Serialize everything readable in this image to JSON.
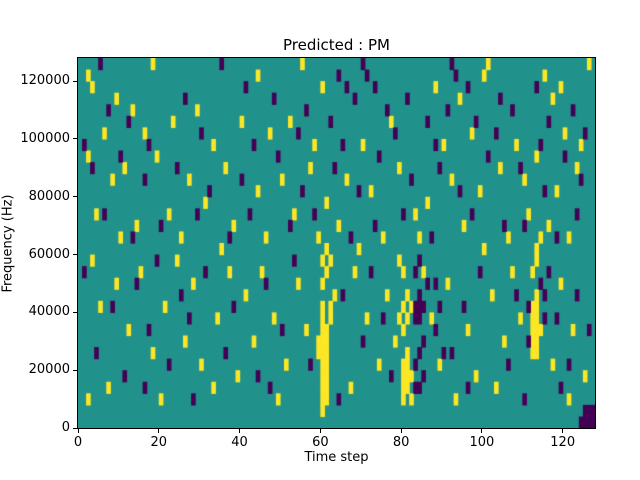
{
  "chart_data": {
    "type": "heatmap",
    "title": "Predicted : PM",
    "xlabel": "Time step",
    "ylabel": "Frequency (Hz)",
    "xlim": [
      0,
      128
    ],
    "ylim": [
      0,
      128000
    ],
    "x_ticks": [
      0,
      20,
      40,
      60,
      80,
      100,
      120
    ],
    "y_ticks": [
      0,
      20000,
      40000,
      60000,
      80000,
      100000,
      120000
    ],
    "grid": {
      "cols": 128,
      "rows": 32,
      "cell_height_hz": 4000
    },
    "colors": {
      "background": "#21918c",
      "high": "#fde725",
      "low": "#440154"
    },
    "legend": "none",
    "cells": {
      "yellow": [
        [
          2,
          30
        ],
        [
          18,
          31
        ],
        [
          44,
          30
        ],
        [
          55,
          31
        ],
        [
          100,
          30
        ],
        [
          101,
          31
        ],
        [
          115,
          30
        ],
        [
          126,
          31
        ],
        [
          9,
          28
        ],
        [
          3,
          29
        ],
        [
          13,
          27
        ],
        [
          29,
          27
        ],
        [
          60,
          29
        ],
        [
          88,
          29
        ],
        [
          94,
          28
        ],
        [
          117,
          28
        ],
        [
          119,
          29
        ],
        [
          52,
          26
        ],
        [
          77,
          26
        ],
        [
          40,
          26
        ],
        [
          23,
          26
        ],
        [
          6,
          25
        ],
        [
          16,
          25
        ],
        [
          47,
          25
        ],
        [
          97,
          25
        ],
        [
          120,
          25
        ],
        [
          33,
          24
        ],
        [
          58,
          24
        ],
        [
          70,
          24
        ],
        [
          90,
          24
        ],
        [
          108,
          24
        ],
        [
          124,
          24
        ],
        [
          2,
          23
        ],
        [
          11,
          22
        ],
        [
          19,
          23
        ],
        [
          27,
          21
        ],
        [
          36,
          22
        ],
        [
          31,
          19
        ],
        [
          44,
          20
        ],
        [
          50,
          21
        ],
        [
          57,
          22
        ],
        [
          61,
          19
        ],
        [
          66,
          21
        ],
        [
          72,
          20
        ],
        [
          79,
          22
        ],
        [
          86,
          19
        ],
        [
          92,
          21
        ],
        [
          99,
          20
        ],
        [
          104,
          22
        ],
        [
          110,
          21
        ],
        [
          113,
          23
        ],
        [
          118,
          20
        ],
        [
          123,
          22
        ],
        [
          8,
          21
        ],
        [
          4,
          18
        ],
        [
          14,
          17
        ],
        [
          22,
          18
        ],
        [
          38,
          17
        ],
        [
          46,
          16
        ],
        [
          53,
          18
        ],
        [
          59,
          16
        ],
        [
          64,
          17
        ],
        [
          75,
          16
        ],
        [
          83,
          18
        ],
        [
          95,
          17
        ],
        [
          106,
          16
        ],
        [
          111,
          18
        ],
        [
          116,
          17
        ],
        [
          121,
          16
        ],
        [
          25,
          16
        ],
        [
          10,
          16
        ],
        [
          35,
          15
        ],
        [
          69,
          15
        ],
        [
          84,
          16
        ],
        [
          100,
          15
        ],
        [
          60,
          1
        ],
        [
          60,
          2
        ],
        [
          60,
          3
        ],
        [
          60,
          4
        ],
        [
          60,
          5
        ],
        [
          60,
          6
        ],
        [
          60,
          7
        ],
        [
          60,
          8
        ],
        [
          60,
          9
        ],
        [
          60,
          10
        ],
        [
          61,
          2
        ],
        [
          61,
          3
        ],
        [
          61,
          4
        ],
        [
          61,
          5
        ],
        [
          61,
          6
        ],
        [
          61,
          7
        ],
        [
          61,
          8
        ],
        [
          59,
          6
        ],
        [
          59,
          7
        ],
        [
          62,
          9
        ],
        [
          62,
          10
        ],
        [
          60,
          12
        ],
        [
          61,
          13
        ],
        [
          60,
          14
        ],
        [
          62,
          14
        ],
        [
          61,
          15
        ],
        [
          80,
          2
        ],
        [
          80,
          3
        ],
        [
          80,
          4
        ],
        [
          80,
          5
        ],
        [
          81,
          3
        ],
        [
          81,
          4
        ],
        [
          81,
          5
        ],
        [
          81,
          6
        ],
        [
          80,
          8
        ],
        [
          81,
          9
        ],
        [
          80,
          10
        ],
        [
          82,
          10
        ],
        [
          81,
          11
        ],
        [
          80,
          13
        ],
        [
          82,
          4
        ],
        [
          82,
          2
        ],
        [
          79,
          9
        ],
        [
          79,
          14
        ],
        [
          112,
          6
        ],
        [
          112,
          7
        ],
        [
          112,
          8
        ],
        [
          112,
          9
        ],
        [
          113,
          6
        ],
        [
          113,
          7
        ],
        [
          113,
          8
        ],
        [
          113,
          9
        ],
        [
          113,
          10
        ],
        [
          114,
          8
        ],
        [
          112,
          10
        ],
        [
          113,
          11
        ],
        [
          112,
          13
        ],
        [
          113,
          14
        ],
        [
          114,
          16
        ],
        [
          113,
          15
        ],
        [
          3,
          14
        ],
        [
          5,
          10
        ],
        [
          9,
          12
        ],
        [
          12,
          8
        ],
        [
          15,
          13
        ],
        [
          18,
          6
        ],
        [
          21,
          10
        ],
        [
          24,
          14
        ],
        [
          26,
          7
        ],
        [
          28,
          12
        ],
        [
          30,
          5
        ],
        [
          34,
          9
        ],
        [
          37,
          13
        ],
        [
          39,
          4
        ],
        [
          41,
          11
        ],
        [
          43,
          7
        ],
        [
          45,
          13
        ],
        [
          48,
          9
        ],
        [
          51,
          5
        ],
        [
          54,
          12
        ],
        [
          56,
          8
        ],
        [
          63,
          11
        ],
        [
          68,
          13
        ],
        [
          71,
          9
        ],
        [
          74,
          5
        ],
        [
          76,
          11
        ],
        [
          78,
          7
        ],
        [
          85,
          13
        ],
        [
          87,
          9
        ],
        [
          89,
          5
        ],
        [
          91,
          12
        ],
        [
          96,
          8
        ],
        [
          98,
          4
        ],
        [
          102,
          11
        ],
        [
          105,
          7
        ],
        [
          107,
          13
        ],
        [
          109,
          9
        ],
        [
          117,
          5
        ],
        [
          119,
          12
        ],
        [
          122,
          8
        ],
        [
          125,
          4
        ],
        [
          2,
          2
        ],
        [
          7,
          3
        ],
        [
          20,
          2
        ],
        [
          33,
          3
        ],
        [
          49,
          2
        ],
        [
          67,
          3
        ],
        [
          93,
          2
        ],
        [
          103,
          3
        ],
        [
          121,
          2
        ]
      ],
      "purple": [
        [
          5,
          31
        ],
        [
          35,
          31
        ],
        [
          64,
          30
        ],
        [
          70,
          31
        ],
        [
          71,
          30
        ],
        [
          92,
          31
        ],
        [
          93,
          30
        ],
        [
          41,
          29
        ],
        [
          48,
          28
        ],
        [
          66,
          29
        ],
        [
          68,
          28
        ],
        [
          73,
          29
        ],
        [
          81,
          28
        ],
        [
          96,
          29
        ],
        [
          104,
          28
        ],
        [
          113,
          29
        ],
        [
          7,
          27
        ],
        [
          12,
          26
        ],
        [
          26,
          28
        ],
        [
          56,
          27
        ],
        [
          62,
          26
        ],
        [
          76,
          27
        ],
        [
          86,
          26
        ],
        [
          91,
          27
        ],
        [
          98,
          26
        ],
        [
          107,
          27
        ],
        [
          116,
          26
        ],
        [
          122,
          27
        ],
        [
          1,
          24
        ],
        [
          17,
          24
        ],
        [
          30,
          25
        ],
        [
          43,
          24
        ],
        [
          54,
          25
        ],
        [
          65,
          24
        ],
        [
          78,
          25
        ],
        [
          88,
          24
        ],
        [
          103,
          25
        ],
        [
          114,
          24
        ],
        [
          125,
          25
        ],
        [
          3,
          22
        ],
        [
          10,
          23
        ],
        [
          16,
          21
        ],
        [
          24,
          22
        ],
        [
          32,
          20
        ],
        [
          40,
          21
        ],
        [
          49,
          23
        ],
        [
          55,
          20
        ],
        [
          63,
          22
        ],
        [
          69,
          20
        ],
        [
          74,
          23
        ],
        [
          82,
          21
        ],
        [
          89,
          22
        ],
        [
          94,
          20
        ],
        [
          101,
          23
        ],
        [
          109,
          22
        ],
        [
          115,
          20
        ],
        [
          120,
          23
        ],
        [
          124,
          21
        ],
        [
          6,
          18
        ],
        [
          13,
          16
        ],
        [
          20,
          17
        ],
        [
          29,
          18
        ],
        [
          37,
          16
        ],
        [
          42,
          18
        ],
        [
          52,
          17
        ],
        [
          58,
          18
        ],
        [
          67,
          16
        ],
        [
          73,
          17
        ],
        [
          80,
          18
        ],
        [
          87,
          16
        ],
        [
          97,
          18
        ],
        [
          105,
          17
        ],
        [
          110,
          17
        ],
        [
          118,
          16
        ],
        [
          123,
          18
        ],
        [
          83,
          9
        ],
        [
          83,
          10
        ],
        [
          84,
          9
        ],
        [
          84,
          10
        ],
        [
          84,
          11
        ],
        [
          85,
          10
        ],
        [
          83,
          5
        ],
        [
          84,
          6
        ],
        [
          85,
          7
        ],
        [
          84,
          3
        ],
        [
          83,
          3
        ],
        [
          85,
          4
        ],
        [
          84,
          14
        ],
        [
          83,
          13
        ],
        [
          88,
          8
        ],
        [
          89,
          10
        ],
        [
          88,
          12
        ],
        [
          90,
          6
        ],
        [
          114,
          12
        ],
        [
          115,
          11
        ],
        [
          115,
          9
        ],
        [
          111,
          10
        ],
        [
          124,
          0
        ],
        [
          125,
          0
        ],
        [
          125,
          1
        ],
        [
          126,
          0
        ],
        [
          126,
          1
        ],
        [
          127,
          0
        ],
        [
          127,
          1
        ],
        [
          1,
          13
        ],
        [
          4,
          6
        ],
        [
          8,
          10
        ],
        [
          11,
          4
        ],
        [
          14,
          12
        ],
        [
          17,
          8
        ],
        [
          19,
          14
        ],
        [
          22,
          5
        ],
        [
          25,
          11
        ],
        [
          27,
          9
        ],
        [
          31,
          13
        ],
        [
          36,
          6
        ],
        [
          38,
          10
        ],
        [
          44,
          4
        ],
        [
          46,
          12
        ],
        [
          50,
          8
        ],
        [
          53,
          14
        ],
        [
          57,
          5
        ],
        [
          65,
          11
        ],
        [
          70,
          7
        ],
        [
          72,
          13
        ],
        [
          75,
          9
        ],
        [
          77,
          4
        ],
        [
          86,
          12
        ],
        [
          92,
          6
        ],
        [
          95,
          10
        ],
        [
          99,
          13
        ],
        [
          106,
          5
        ],
        [
          108,
          11
        ],
        [
          111,
          7
        ],
        [
          116,
          13
        ],
        [
          118,
          9
        ],
        [
          121,
          5
        ],
        [
          123,
          11
        ],
        [
          126,
          8
        ],
        [
          64,
          2
        ],
        [
          47,
          3
        ],
        [
          28,
          2
        ],
        [
          16,
          3
        ],
        [
          96,
          3
        ],
        [
          110,
          2
        ],
        [
          119,
          3
        ]
      ]
    }
  }
}
